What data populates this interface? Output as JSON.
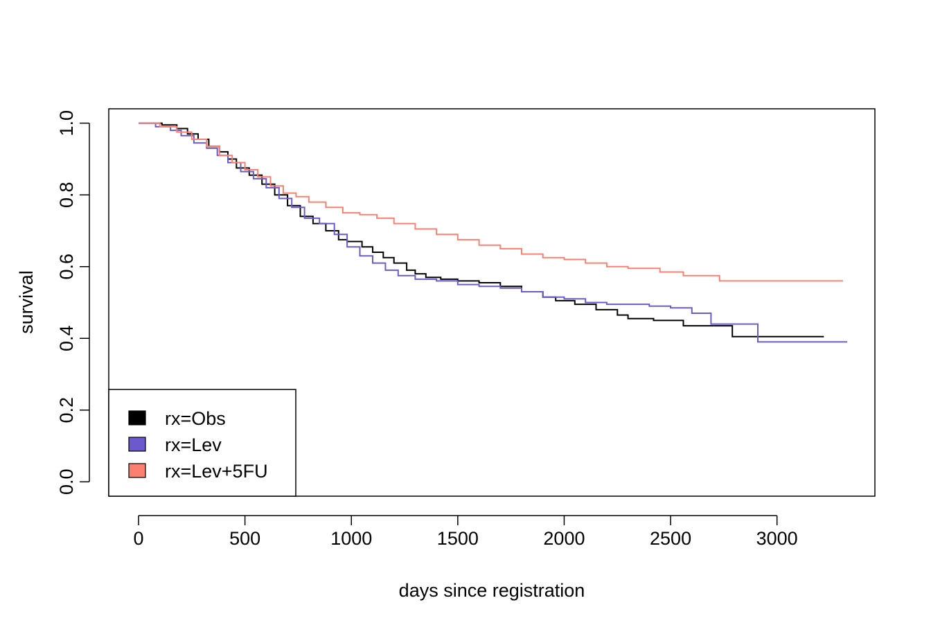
{
  "chart_data": {
    "type": "line",
    "step": true,
    "title": "",
    "xlabel": "days since registration",
    "ylabel": "survival",
    "xlim": [
      -140,
      3460
    ],
    "ylim": [
      -0.04,
      1.04
    ],
    "x_ticks": [
      0,
      500,
      1000,
      1500,
      2000,
      2500,
      3000
    ],
    "x_tick_labels": [
      "0",
      "500",
      "1000",
      "1500",
      "2000",
      "2500",
      "3000"
    ],
    "y_ticks": [
      0.0,
      0.2,
      0.4,
      0.6,
      0.8,
      1.0
    ],
    "y_tick_labels": [
      "0.0",
      "0.2",
      "0.4",
      "0.6",
      "0.8",
      "1.0"
    ],
    "grid": false,
    "legend_position": "bottom-left",
    "series": [
      {
        "name": "rx=Obs",
        "color": "#000000",
        "x": [
          0,
          110,
          180,
          230,
          280,
          330,
          380,
          420,
          460,
          520,
          580,
          640,
          700,
          760,
          820,
          880,
          940,
          980,
          1050,
          1100,
          1150,
          1200,
          1260,
          1300,
          1350,
          1420,
          1500,
          1600,
          1700,
          1800,
          1900,
          1960,
          2050,
          2150,
          2250,
          2300,
          2420,
          2560,
          2790,
          3220
        ],
        "y": [
          1.0,
          0.995,
          0.985,
          0.97,
          0.955,
          0.935,
          0.92,
          0.9,
          0.875,
          0.855,
          0.83,
          0.8,
          0.77,
          0.74,
          0.72,
          0.7,
          0.675,
          0.67,
          0.655,
          0.64,
          0.625,
          0.61,
          0.59,
          0.58,
          0.57,
          0.565,
          0.56,
          0.555,
          0.545,
          0.53,
          0.515,
          0.505,
          0.495,
          0.48,
          0.465,
          0.455,
          0.45,
          0.435,
          0.405,
          0.405
        ]
      },
      {
        "name": "rx=Lev",
        "color": "#6A5ACD",
        "x": [
          0,
          80,
          150,
          200,
          260,
          320,
          370,
          420,
          480,
          540,
          600,
          660,
          720,
          780,
          850,
          920,
          980,
          1040,
          1100,
          1160,
          1220,
          1300,
          1400,
          1500,
          1600,
          1700,
          1800,
          1900,
          2000,
          2100,
          2200,
          2300,
          2400,
          2500,
          2600,
          2690,
          2910,
          3330
        ],
        "y": [
          1.0,
          0.99,
          0.98,
          0.965,
          0.945,
          0.93,
          0.91,
          0.89,
          0.865,
          0.845,
          0.82,
          0.79,
          0.765,
          0.735,
          0.72,
          0.69,
          0.655,
          0.63,
          0.61,
          0.59,
          0.575,
          0.565,
          0.56,
          0.55,
          0.545,
          0.54,
          0.53,
          0.515,
          0.51,
          0.5,
          0.495,
          0.495,
          0.49,
          0.485,
          0.47,
          0.44,
          0.39,
          0.39
        ]
      },
      {
        "name": "rx=Lev+5FU",
        "color": "#FA8072",
        "x": [
          0,
          100,
          180,
          250,
          320,
          380,
          440,
          500,
          560,
          620,
          680,
          740,
          800,
          880,
          960,
          1040,
          1120,
          1200,
          1300,
          1400,
          1500,
          1600,
          1700,
          1800,
          1900,
          2000,
          2100,
          2200,
          2300,
          2450,
          2560,
          2730,
          3310
        ],
        "y": [
          1.0,
          0.99,
          0.975,
          0.955,
          0.935,
          0.91,
          0.89,
          0.87,
          0.85,
          0.825,
          0.805,
          0.795,
          0.78,
          0.765,
          0.75,
          0.745,
          0.735,
          0.72,
          0.705,
          0.69,
          0.675,
          0.66,
          0.65,
          0.635,
          0.625,
          0.62,
          0.61,
          0.6,
          0.595,
          0.585,
          0.575,
          0.56,
          0.56
        ]
      }
    ]
  }
}
